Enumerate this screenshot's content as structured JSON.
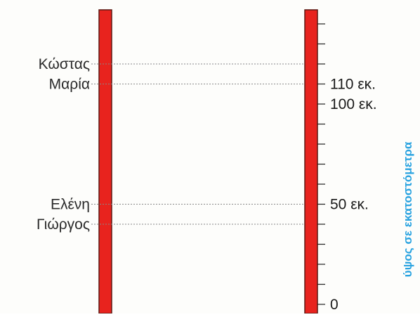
{
  "people": [
    {
      "name": "Κώστας",
      "height_cm": 120
    },
    {
      "name": "Μαρία",
      "height_cm": 110
    },
    {
      "name": "Ελένη",
      "height_cm": 50
    },
    {
      "name": "Γιώργος",
      "height_cm": 40
    }
  ],
  "scale": {
    "min_cm": 0,
    "max_cm": 150,
    "tick_step_cm": 10,
    "labels": [
      {
        "value_cm": 110,
        "text": "110 εκ."
      },
      {
        "value_cm": 100,
        "text": "100 εκ."
      },
      {
        "value_cm": 50,
        "text": "50 εκ."
      },
      {
        "value_cm": 0,
        "text": "0"
      }
    ]
  },
  "axis_title": "ύψος σε εκατοστόμετρα",
  "colors": {
    "bar_fill": "#e8231e",
    "bar_outline": "#5a1a14",
    "axis_title": "#2aa3e0",
    "dotted_line": "#888888"
  }
}
